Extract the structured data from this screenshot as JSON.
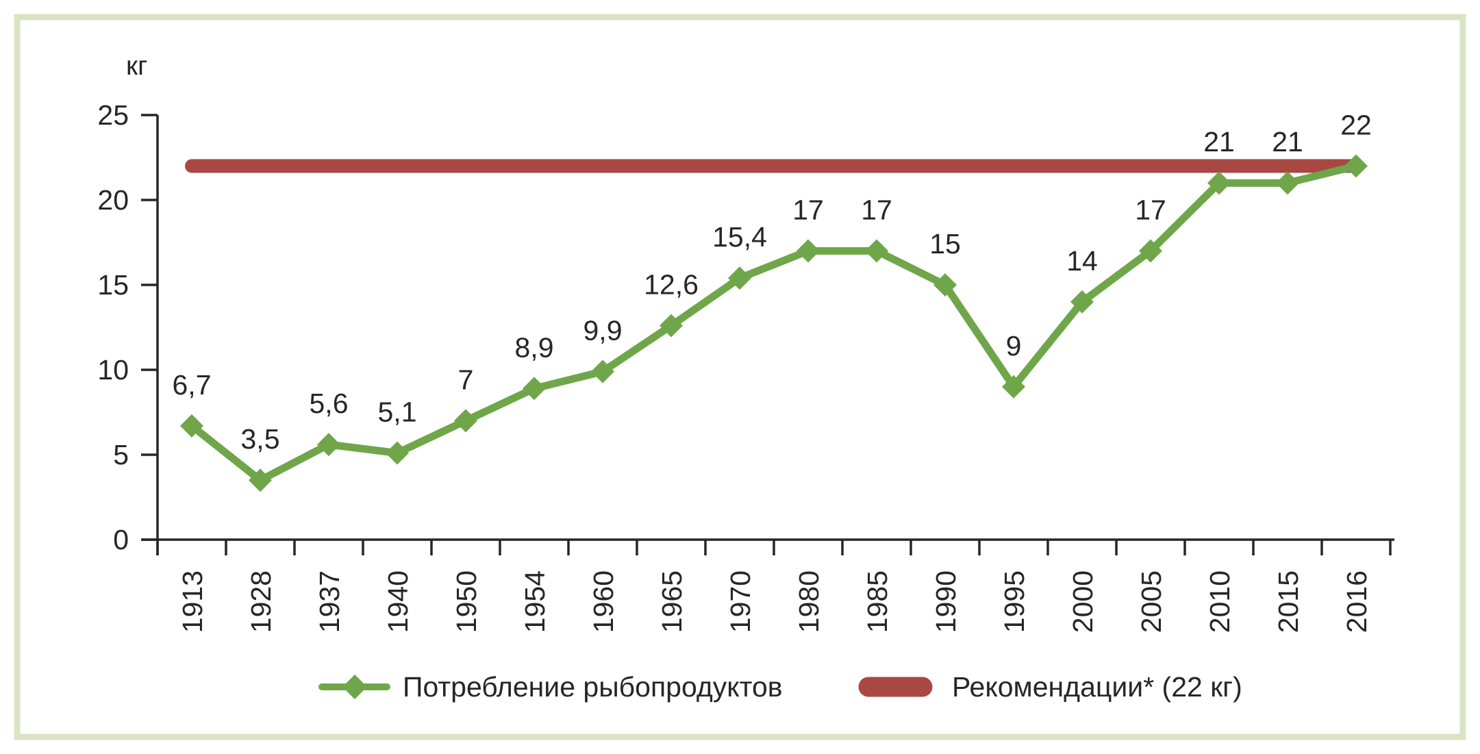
{
  "chart_data": {
    "type": "line",
    "title": "",
    "xlabel": "",
    "ylabel": "кг",
    "categories": [
      "1913",
      "1928",
      "1937",
      "1940",
      "1950",
      "1954",
      "1960",
      "1965",
      "1970",
      "1980",
      "1985",
      "1990",
      "1995",
      "2000",
      "2005",
      "2010",
      "2015",
      "2016"
    ],
    "series": [
      {
        "name": "Потребление рыбопродуктов",
        "type": "line",
        "marker": "diamond",
        "color": "#6fa64a",
        "values": [
          6.7,
          3.5,
          5.6,
          5.1,
          7,
          8.9,
          9.9,
          12.6,
          15.4,
          17,
          17,
          15,
          9,
          14,
          17,
          21,
          21,
          22
        ],
        "point_labels": [
          "6,7",
          "3,5",
          "5,6",
          "5,1",
          "7",
          "8,9",
          "9,9",
          "12,6",
          "15,4",
          "17",
          "17",
          "15",
          "9",
          "14",
          "17",
          "21",
          "21",
          "22"
        ]
      },
      {
        "name": "Рекомендации* (22 кг)",
        "type": "reference-line",
        "color": "#a94742",
        "value": 22
      }
    ],
    "ylim": [
      0,
      25
    ],
    "yticks": [
      "0",
      "5",
      "10",
      "15",
      "20",
      "25"
    ],
    "grid": false,
    "legend_position": "bottom",
    "colors": {
      "axis": "#262626",
      "text": "#262626",
      "frame_border": "#d8e4c4",
      "background": "#ffffff"
    }
  }
}
